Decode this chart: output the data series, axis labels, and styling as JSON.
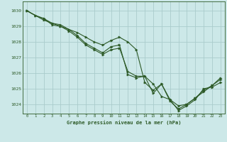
{
  "bg_color": "#cce8e8",
  "grid_color": "#aacccc",
  "line_color": "#2d5a27",
  "marker_color": "#2d5a27",
  "title": "Graphe pression niveau de la mer (hPa)",
  "xlim": [
    -0.5,
    23.5
  ],
  "ylim": [
    1023.4,
    1030.6
  ],
  "yticks": [
    1024,
    1025,
    1026,
    1027,
    1028,
    1029,
    1030
  ],
  "xticks": [
    0,
    1,
    2,
    3,
    4,
    5,
    6,
    7,
    8,
    9,
    10,
    11,
    12,
    13,
    14,
    15,
    16,
    17,
    18,
    19,
    20,
    21,
    22,
    23
  ],
  "series": [
    [
      1030.0,
      1029.7,
      1029.5,
      1029.2,
      1029.1,
      1028.8,
      1028.6,
      1028.3,
      1028.0,
      1027.8,
      1028.1,
      1028.3,
      1028.0,
      1027.5,
      1025.4,
      1024.9,
      1025.3,
      1024.3,
      1023.6,
      1023.9,
      1024.3,
      1025.0,
      1025.1,
      1025.4
    ],
    [
      1030.0,
      1029.7,
      1029.4,
      1029.2,
      1029.0,
      1028.7,
      1028.3,
      1027.8,
      1027.5,
      1027.2,
      1027.5,
      1027.6,
      1026.1,
      1025.8,
      1025.8,
      1025.3,
      1024.5,
      1024.3,
      1023.9,
      1024.0,
      1024.4,
      1024.8,
      1025.2,
      1025.7
    ],
    [
      1030.0,
      1029.7,
      1029.5,
      1029.1,
      1029.0,
      1028.8,
      1028.4,
      1027.9,
      1027.6,
      1027.3,
      1027.7,
      1027.8,
      1025.9,
      1025.7,
      1025.8,
      1024.7,
      1025.3,
      1024.2,
      1023.7,
      1024.0,
      1024.4,
      1024.9,
      1025.2,
      1025.6
    ]
  ]
}
